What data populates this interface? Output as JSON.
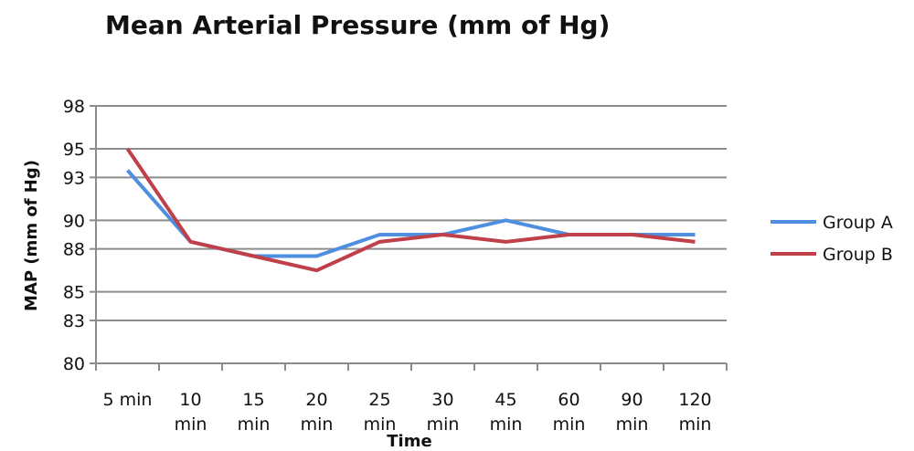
{
  "chart_data": {
    "type": "line",
    "title": "Mean Arterial Pressure (mm of Hg)",
    "xlabel": "Time",
    "ylabel": "MAP (mm of Hg)",
    "categories": [
      [
        "5 min"
      ],
      [
        "10",
        "min"
      ],
      [
        "15",
        "min"
      ],
      [
        "20",
        "min"
      ],
      [
        "25",
        "min"
      ],
      [
        "30",
        "min"
      ],
      [
        "45",
        "min"
      ],
      [
        "60",
        "min"
      ],
      [
        "90",
        "min"
      ],
      [
        "120",
        "min"
      ]
    ],
    "ylim": [
      80,
      98
    ],
    "yticks": [
      80,
      83,
      85,
      88,
      90,
      93,
      95,
      98
    ],
    "grid": true,
    "legend": "right",
    "series": [
      {
        "name": "Group A",
        "color": "#4f8fe0",
        "values": [
          93.5,
          88.5,
          87.5,
          87.5,
          89.0,
          89.0,
          90.0,
          89.0,
          89.0,
          89.0
        ]
      },
      {
        "name": "Group B",
        "color": "#c0404a",
        "values": [
          95.0,
          88.5,
          87.5,
          86.5,
          88.5,
          89.0,
          88.5,
          89.0,
          89.0,
          88.5
        ]
      }
    ]
  }
}
